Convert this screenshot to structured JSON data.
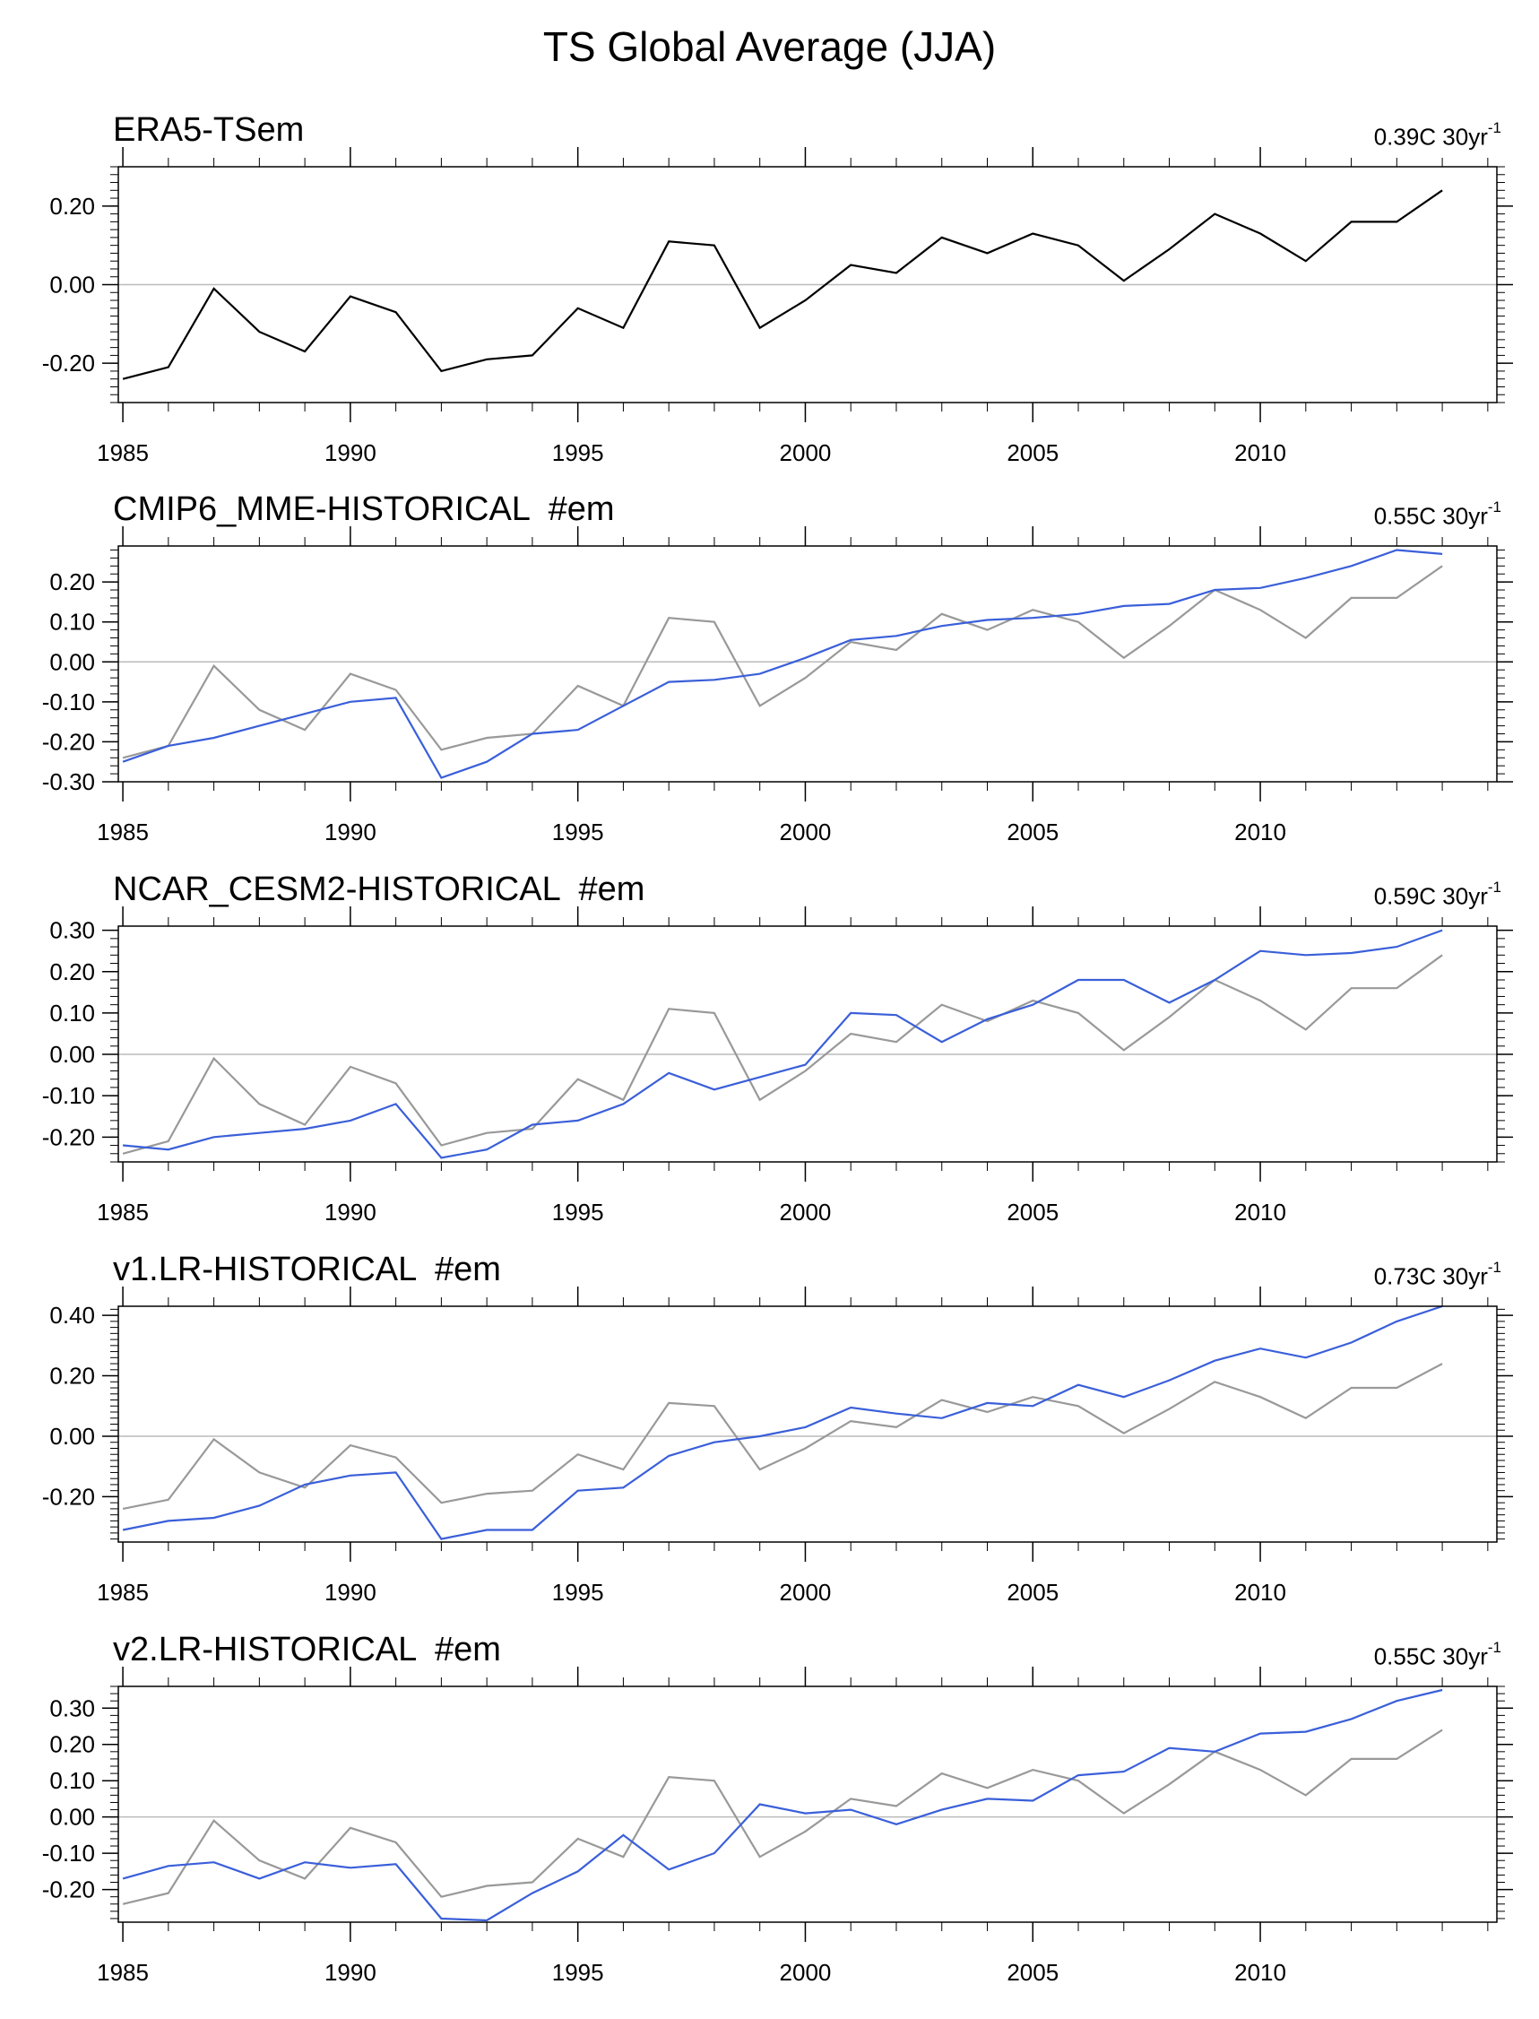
{
  "title": "TS Global Average (JJA)",
  "colors": {
    "reference": "#999999",
    "reference_main": "#000000",
    "model": "#3a5fd9",
    "zero_line": "#bbbbbb"
  },
  "chart_data": [
    {
      "type": "line",
      "title": "ERA5-TSem",
      "trend": "0.39C 30yr",
      "trend_sup": "-1",
      "x": [
        1985,
        1986,
        1987,
        1988,
        1989,
        1990,
        1991,
        1992,
        1993,
        1994,
        1995,
        1996,
        1997,
        1998,
        1999,
        2000,
        2001,
        2002,
        2003,
        2004,
        2005,
        2006,
        2007,
        2008,
        2009,
        2010,
        2011,
        2012,
        2013,
        2014
      ],
      "xticks": [
        1985,
        1990,
        1995,
        2000,
        2005,
        2010
      ],
      "ylim": [
        -0.3,
        0.3
      ],
      "yticks": [
        -0.2,
        0.0,
        0.2
      ],
      "series": [
        {
          "name": "ERA5",
          "color": "#000000",
          "values": [
            -0.24,
            -0.21,
            -0.01,
            -0.12,
            -0.17,
            -0.03,
            -0.07,
            -0.22,
            -0.19,
            -0.18,
            -0.06,
            -0.11,
            0.11,
            0.1,
            -0.11,
            -0.04,
            0.05,
            0.03,
            0.12,
            0.08,
            0.13,
            0.1,
            0.01,
            0.09,
            0.18,
            0.13,
            0.06,
            0.16,
            0.16,
            0.24
          ]
        }
      ]
    },
    {
      "type": "line",
      "title": "CMIP6_MME-HISTORICAL  #em",
      "trend": "0.55C 30yr",
      "trend_sup": "-1",
      "x": [
        1985,
        1986,
        1987,
        1988,
        1989,
        1990,
        1991,
        1992,
        1993,
        1994,
        1995,
        1996,
        1997,
        1998,
        1999,
        2000,
        2001,
        2002,
        2003,
        2004,
        2005,
        2006,
        2007,
        2008,
        2009,
        2010,
        2011,
        2012,
        2013,
        2014
      ],
      "xticks": [
        1985,
        1990,
        1995,
        2000,
        2005,
        2010
      ],
      "ylim": [
        -0.3,
        0.29
      ],
      "yticks": [
        -0.3,
        -0.2,
        -0.1,
        0.0,
        0.1,
        0.2
      ],
      "series": [
        {
          "name": "ERA5",
          "color": "#999999",
          "values": [
            -0.24,
            -0.21,
            -0.01,
            -0.12,
            -0.17,
            -0.03,
            -0.07,
            -0.22,
            -0.19,
            -0.18,
            -0.06,
            -0.11,
            0.11,
            0.1,
            -0.11,
            -0.04,
            0.05,
            0.03,
            0.12,
            0.08,
            0.13,
            0.1,
            0.01,
            0.09,
            0.18,
            0.13,
            0.06,
            0.16,
            0.16,
            0.24
          ]
        },
        {
          "name": "CMIP6_MME",
          "color": "#3a5fd9",
          "values": [
            -0.25,
            -0.21,
            -0.19,
            -0.16,
            -0.13,
            -0.1,
            -0.09,
            -0.29,
            -0.25,
            -0.18,
            -0.17,
            -0.11,
            -0.05,
            -0.045,
            -0.03,
            0.01,
            0.055,
            0.065,
            0.09,
            0.105,
            0.11,
            0.12,
            0.14,
            0.145,
            0.18,
            0.185,
            0.21,
            0.24,
            0.28,
            0.27
          ]
        }
      ]
    },
    {
      "type": "line",
      "title": "NCAR_CESM2-HISTORICAL  #em",
      "trend": "0.59C 30yr",
      "trend_sup": "-1",
      "x": [
        1985,
        1986,
        1987,
        1988,
        1989,
        1990,
        1991,
        1992,
        1993,
        1994,
        1995,
        1996,
        1997,
        1998,
        1999,
        2000,
        2001,
        2002,
        2003,
        2004,
        2005,
        2006,
        2007,
        2008,
        2009,
        2010,
        2011,
        2012,
        2013,
        2014
      ],
      "xticks": [
        1985,
        1990,
        1995,
        2000,
        2005,
        2010
      ],
      "ylim": [
        -0.26,
        0.31
      ],
      "yticks": [
        -0.2,
        -0.1,
        0.0,
        0.1,
        0.2,
        0.3
      ],
      "series": [
        {
          "name": "ERA5",
          "color": "#999999",
          "values": [
            -0.24,
            -0.21,
            -0.01,
            -0.12,
            -0.17,
            -0.03,
            -0.07,
            -0.22,
            -0.19,
            -0.18,
            -0.06,
            -0.11,
            0.11,
            0.1,
            -0.11,
            -0.04,
            0.05,
            0.03,
            0.12,
            0.08,
            0.13,
            0.1,
            0.01,
            0.09,
            0.18,
            0.13,
            0.06,
            0.16,
            0.16,
            0.24
          ]
        },
        {
          "name": "NCAR_CESM2",
          "color": "#3a5fd9",
          "values": [
            -0.22,
            -0.23,
            -0.2,
            -0.19,
            -0.18,
            -0.16,
            -0.12,
            -0.25,
            -0.23,
            -0.17,
            -0.16,
            -0.12,
            -0.045,
            -0.085,
            -0.055,
            -0.025,
            0.1,
            0.095,
            0.03,
            0.085,
            0.12,
            0.18,
            0.18,
            0.125,
            0.18,
            0.25,
            0.24,
            0.245,
            0.26,
            0.3
          ]
        }
      ]
    },
    {
      "type": "line",
      "title": "v1.LR-HISTORICAL  #em",
      "trend": "0.73C 30yr",
      "trend_sup": "-1",
      "x": [
        1985,
        1986,
        1987,
        1988,
        1989,
        1990,
        1991,
        1992,
        1993,
        1994,
        1995,
        1996,
        1997,
        1998,
        1999,
        2000,
        2001,
        2002,
        2003,
        2004,
        2005,
        2006,
        2007,
        2008,
        2009,
        2010,
        2011,
        2012,
        2013,
        2014
      ],
      "xticks": [
        1985,
        1990,
        1995,
        2000,
        2005,
        2010
      ],
      "ylim": [
        -0.35,
        0.43
      ],
      "yticks": [
        -0.2,
        0.0,
        0.2,
        0.4
      ],
      "series": [
        {
          "name": "ERA5",
          "color": "#999999",
          "values": [
            -0.24,
            -0.21,
            -0.01,
            -0.12,
            -0.17,
            -0.03,
            -0.07,
            -0.22,
            -0.19,
            -0.18,
            -0.06,
            -0.11,
            0.11,
            0.1,
            -0.11,
            -0.04,
            0.05,
            0.03,
            0.12,
            0.08,
            0.13,
            0.1,
            0.01,
            0.09,
            0.18,
            0.13,
            0.06,
            0.16,
            0.16,
            0.24
          ]
        },
        {
          "name": "v1.LR",
          "color": "#3a5fd9",
          "values": [
            -0.31,
            -0.28,
            -0.27,
            -0.23,
            -0.16,
            -0.13,
            -0.12,
            -0.34,
            -0.31,
            -0.31,
            -0.18,
            -0.17,
            -0.065,
            -0.02,
            0.0,
            0.03,
            0.095,
            0.075,
            0.06,
            0.11,
            0.1,
            0.17,
            0.13,
            0.185,
            0.25,
            0.29,
            0.26,
            0.31,
            0.38,
            0.43
          ]
        }
      ]
    },
    {
      "type": "line",
      "title": "v2.LR-HISTORICAL  #em",
      "trend": "0.55C 30yr",
      "trend_sup": "-1",
      "x": [
        1985,
        1986,
        1987,
        1988,
        1989,
        1990,
        1991,
        1992,
        1993,
        1994,
        1995,
        1996,
        1997,
        1998,
        1999,
        2000,
        2001,
        2002,
        2003,
        2004,
        2005,
        2006,
        2007,
        2008,
        2009,
        2010,
        2011,
        2012,
        2013,
        2014
      ],
      "xticks": [
        1985,
        1990,
        1995,
        2000,
        2005,
        2010
      ],
      "ylim": [
        -0.29,
        0.36
      ],
      "yticks": [
        -0.2,
        -0.1,
        0.0,
        0.1,
        0.2,
        0.3
      ],
      "series": [
        {
          "name": "ERA5",
          "color": "#999999",
          "values": [
            -0.24,
            -0.21,
            -0.01,
            -0.12,
            -0.17,
            -0.03,
            -0.07,
            -0.22,
            -0.19,
            -0.18,
            -0.06,
            -0.11,
            0.11,
            0.1,
            -0.11,
            -0.04,
            0.05,
            0.03,
            0.12,
            0.08,
            0.13,
            0.1,
            0.01,
            0.09,
            0.18,
            0.13,
            0.06,
            0.16,
            0.16,
            0.24
          ]
        },
        {
          "name": "v2.LR",
          "color": "#3a5fd9",
          "values": [
            -0.17,
            -0.135,
            -0.125,
            -0.17,
            -0.125,
            -0.14,
            -0.13,
            -0.28,
            -0.285,
            -0.21,
            -0.15,
            -0.05,
            -0.145,
            -0.1,
            0.035,
            0.01,
            0.02,
            -0.02,
            0.02,
            0.05,
            0.045,
            0.115,
            0.125,
            0.19,
            0.18,
            0.23,
            0.235,
            0.27,
            0.32,
            0.35
          ]
        }
      ]
    }
  ]
}
